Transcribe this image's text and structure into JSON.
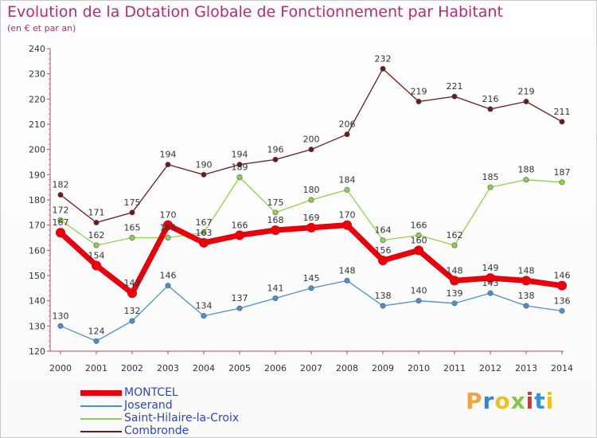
{
  "header": {
    "title": "Evolution de la Dotation Globale de Fonctionnement par Habitant",
    "subtitle": "(en € et par an)"
  },
  "logo": {
    "text": "Proxiti",
    "colors": [
      "#f2a33a",
      "#2f86d8",
      "#e8c020",
      "#8bc34a",
      "#d9322e",
      "#3a8fd8",
      "#f0c020"
    ]
  },
  "chart_data": {
    "type": "line",
    "x": [
      "2000",
      "2001",
      "2002",
      "2003",
      "2004",
      "2005",
      "2006",
      "2007",
      "2008",
      "2009",
      "2010",
      "2011",
      "2012",
      "2013",
      "2014"
    ],
    "ylim": [
      120,
      240
    ],
    "yticks": [
      120,
      130,
      140,
      150,
      160,
      170,
      180,
      190,
      200,
      210,
      220,
      230,
      240
    ],
    "grid": false,
    "legend_position": "bottom-left",
    "series": [
      {
        "name": "MONTCEL",
        "color": "#e8000b",
        "values": [
          167,
          154,
          143,
          170,
          163,
          166,
          168,
          169,
          170,
          156,
          160,
          148,
          149,
          148,
          146
        ]
      },
      {
        "name": "Joserand",
        "color": "#4a8fd0",
        "values": [
          130,
          124,
          132,
          146,
          134,
          137,
          141,
          145,
          148,
          138,
          140,
          139,
          143,
          138,
          136
        ]
      },
      {
        "name": "Saint-Hilaire-la-Croix",
        "color": "#8fd14f",
        "values": [
          172,
          162,
          165,
          165,
          167,
          189,
          175,
          180,
          184,
          164,
          166,
          162,
          185,
          188,
          187
        ]
      },
      {
        "name": "Combronde",
        "color": "#6b1a1a",
        "values": [
          182,
          171,
          175,
          194,
          190,
          194,
          196,
          200,
          206,
          232,
          219,
          221,
          216,
          219,
          211
        ]
      }
    ]
  }
}
